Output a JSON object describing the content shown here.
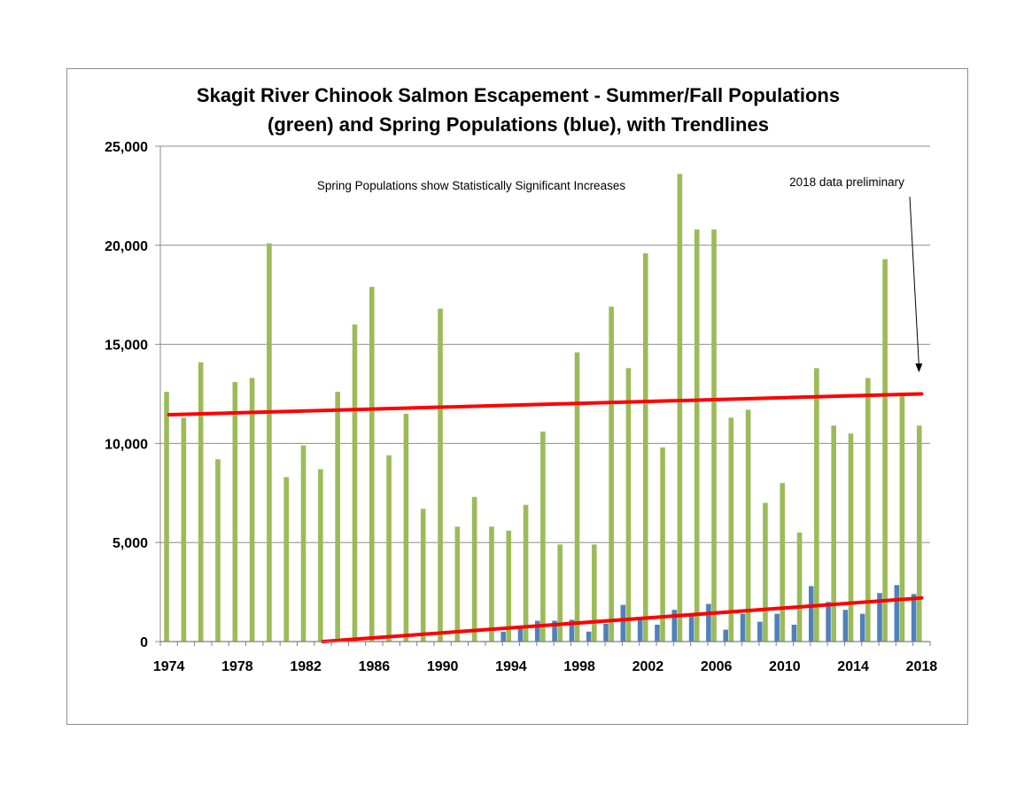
{
  "chart_data": {
    "type": "bar",
    "title_line1": "Skagit River Chinook Salmon Escapement - Summer/Fall Populations",
    "title_line2": "(green) and Spring Populations (blue), with Trendlines",
    "annotation_main": "Spring Populations show Statistically Significant Increases",
    "annotation_prelim": "2018 data preliminary",
    "xlabel": "",
    "ylabel": "",
    "ylim": [
      0,
      25000
    ],
    "y_ticks": [
      "0",
      "5,000",
      "10,000",
      "15,000",
      "20,000",
      "25,000"
    ],
    "y_tick_values": [
      0,
      5000,
      10000,
      15000,
      20000,
      25000
    ],
    "x_tick_years": [
      1974,
      1978,
      1982,
      1986,
      1990,
      1994,
      1998,
      2002,
      2006,
      2010,
      2014,
      2018
    ],
    "grid": true,
    "colors": {
      "summer_fall": "#9bbb59",
      "spring": "#4f81bd",
      "trend": "#ff0000",
      "grid": "#8c8c8c"
    },
    "years": [
      1974,
      1975,
      1976,
      1977,
      1978,
      1979,
      1980,
      1981,
      1982,
      1983,
      1984,
      1985,
      1986,
      1987,
      1988,
      1989,
      1990,
      1991,
      1992,
      1993,
      1994,
      1995,
      1996,
      1997,
      1998,
      1999,
      2000,
      2001,
      2002,
      2003,
      2004,
      2005,
      2006,
      2007,
      2008,
      2009,
      2010,
      2011,
      2012,
      2013,
      2014,
      2015,
      2016,
      2017,
      2018
    ],
    "series": [
      {
        "values": [
          12600,
          11300,
          14100,
          9200,
          13100,
          13300,
          20100,
          8300,
          9900,
          8700,
          12600,
          16000,
          17900,
          9400,
          11500,
          6700,
          16800,
          5800,
          7300,
          5800,
          5600,
          6900,
          10600,
          4900,
          14600,
          4900,
          16900,
          13800,
          19600,
          9800,
          23600,
          20800,
          20800,
          11300,
          11700,
          7000,
          8000,
          5500,
          13800,
          10900,
          10500,
          13300,
          19300,
          12400,
          10900
        ]
      },
      {
        "values": [
          0,
          0,
          0,
          0,
          0,
          0,
          0,
          0,
          0,
          0,
          0,
          0,
          0,
          0,
          0,
          0,
          0,
          0,
          0,
          0,
          500,
          800,
          1050,
          1050,
          1100,
          500,
          900,
          1850,
          1100,
          850,
          1600,
          1400,
          1900,
          600,
          1400,
          1000,
          1400,
          850,
          2800,
          2000,
          1600,
          1400,
          2450,
          2850,
          2400
        ]
      }
    ],
    "trendlines": [
      {
        "x": [
          1974,
          2018
        ],
        "y": [
          11450,
          12500
        ]
      },
      {
        "x": [
          1983,
          2018
        ],
        "y": [
          0,
          2200
        ]
      }
    ]
  }
}
